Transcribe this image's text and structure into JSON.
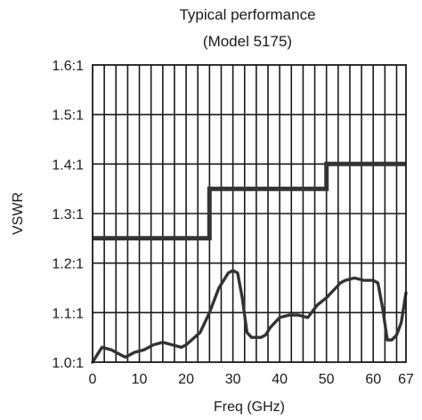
{
  "chart_data": {
    "type": "line",
    "title": "Typical performance",
    "subtitle": "(Model 5175)",
    "xlabel": "Freq (GHz)",
    "ylabel": "VSWR",
    "xlim": [
      0,
      67
    ],
    "ylim": [
      1.0,
      1.6
    ],
    "x_ticks": [
      0,
      10,
      20,
      30,
      40,
      50,
      60,
      67
    ],
    "x_tick_labels": [
      "0",
      "10",
      "20",
      "30",
      "40",
      "50",
      "60",
      "67"
    ],
    "y_ticks": [
      1.0,
      1.1,
      1.2,
      1.3,
      1.4,
      1.5,
      1.6
    ],
    "y_tick_labels": [
      "1.0:1",
      "1.1:1",
      "1.2:1",
      "1.3:1",
      "1.4:1",
      "1.5:1",
      "1.6:1"
    ],
    "grid": true,
    "series": [
      {
        "color": "#333333",
        "x": [
          0,
          25,
          25,
          50,
          50,
          67
        ],
        "y": [
          1.25,
          1.25,
          1.35,
          1.35,
          1.4,
          1.4
        ]
      },
      {
        "color": "#333333",
        "x": [
          0,
          2,
          4,
          6,
          7,
          9,
          11,
          13,
          15,
          17,
          19,
          20,
          23,
          25,
          27,
          29,
          30,
          31,
          32,
          33,
          34,
          35,
          36,
          37,
          38,
          40,
          42,
          44,
          46,
          48,
          50,
          52,
          53,
          54,
          56,
          58,
          60,
          61,
          62,
          63,
          64,
          65,
          66,
          67
        ],
        "y": [
          1.0,
          1.03,
          1.025,
          1.015,
          1.01,
          1.02,
          1.025,
          1.035,
          1.04,
          1.035,
          1.03,
          1.035,
          1.06,
          1.1,
          1.15,
          1.18,
          1.185,
          1.18,
          1.13,
          1.06,
          1.05,
          1.05,
          1.05,
          1.055,
          1.07,
          1.09,
          1.095,
          1.095,
          1.09,
          1.115,
          1.13,
          1.15,
          1.16,
          1.165,
          1.17,
          1.165,
          1.165,
          1.16,
          1.11,
          1.045,
          1.045,
          1.055,
          1.08,
          1.14
        ]
      }
    ]
  }
}
